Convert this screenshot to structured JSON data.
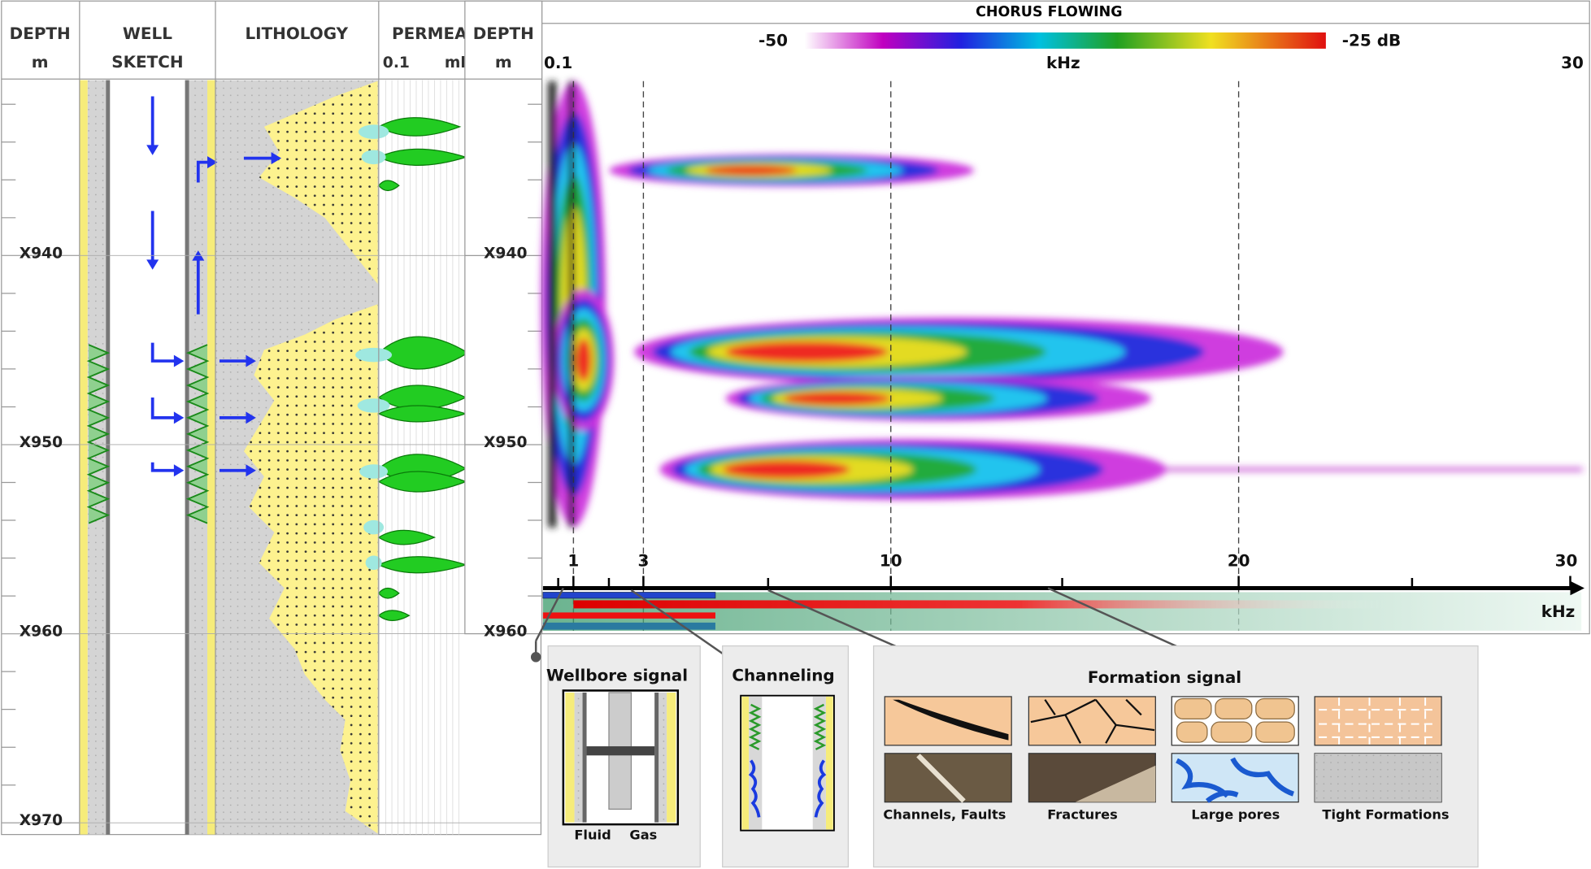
{
  "log_panel": {
    "headers": [
      {
        "title": "DEPTH",
        "unit": "m"
      },
      {
        "title": "WELL",
        "subtitle": "SKETCH"
      },
      {
        "title": "LITHOLOGY"
      },
      {
        "title": "PERMEA",
        "scale_min": "0.1",
        "scale_unit": "ml"
      }
    ],
    "depth_labels": [
      "X940",
      "X950",
      "X960",
      "X970"
    ]
  },
  "spectrum": {
    "title": "CHORUS FLOWING",
    "colorbar_min": "-50",
    "colorbar_max": "-25 dB",
    "axis_label": "kHz",
    "axis_min": "0.1",
    "axis_max": "30",
    "depth_header": {
      "title": "DEPTH",
      "unit": "m"
    },
    "depth_labels": [
      "X940",
      "X950",
      "X960"
    ],
    "bottom_ticks": [
      "1",
      "3",
      "10",
      "20",
      "30"
    ],
    "bottom_unit": "kHz"
  },
  "legend": {
    "wellbore": {
      "title": "Wellbore signal",
      "labels": [
        "Fluid",
        "Gas"
      ]
    },
    "channeling": {
      "title": "Channeling"
    },
    "formation": {
      "title": "Formation signal",
      "items": [
        "Channels, Faults",
        "Fractures",
        "Large pores",
        "Tight Formations"
      ]
    }
  }
}
